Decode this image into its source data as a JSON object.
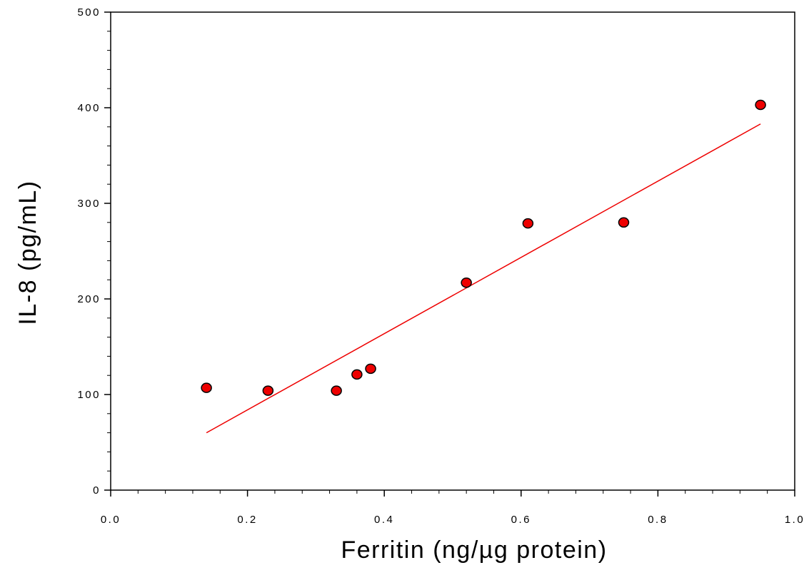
{
  "chart_data": {
    "type": "scatter",
    "title": "",
    "xlabel": "Ferritin (ng/µg protein)",
    "ylabel": "IL-8 (pg/mL)",
    "xlim": [
      0.0,
      1.0
    ],
    "ylim": [
      0,
      500
    ],
    "x_ticks": [
      {
        "value": 0.0,
        "label": "0.0"
      },
      {
        "value": 0.2,
        "label": "0.2"
      },
      {
        "value": 0.4,
        "label": "0.4"
      },
      {
        "value": 0.6,
        "label": "0.6"
      },
      {
        "value": 0.8,
        "label": "0.8"
      },
      {
        "value": 1.0,
        "label": "1.0"
      }
    ],
    "y_ticks": [
      {
        "value": 0,
        "label": "0"
      },
      {
        "value": 100,
        "label": "100"
      },
      {
        "value": 200,
        "label": "200"
      },
      {
        "value": 300,
        "label": "300"
      },
      {
        "value": 400,
        "label": "400"
      },
      {
        "value": 500,
        "label": "500"
      }
    ],
    "x_minor_step": 0.04,
    "y_minor_step": 20,
    "grid": false,
    "series": [
      {
        "points": [
          {
            "x": 0.14,
            "y": 107
          },
          {
            "x": 0.23,
            "y": 104
          },
          {
            "x": 0.33,
            "y": 104
          },
          {
            "x": 0.36,
            "y": 121
          },
          {
            "x": 0.38,
            "y": 127
          },
          {
            "x": 0.52,
            "y": 217
          },
          {
            "x": 0.61,
            "y": 279
          },
          {
            "x": 0.75,
            "y": 280
          },
          {
            "x": 0.95,
            "y": 403
          }
        ],
        "marker_color": "#ee0000",
        "marker_edge_color": "#000000"
      }
    ],
    "regression_line": {
      "x_start": 0.14,
      "y_start": 60,
      "x_end": 0.95,
      "y_end": 383,
      "color": "#ee0000"
    }
  }
}
